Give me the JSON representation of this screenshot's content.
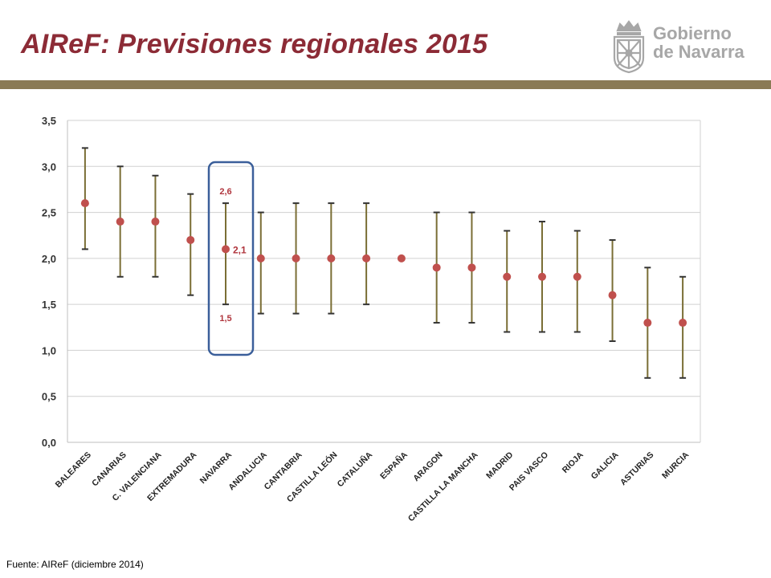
{
  "title": "AIReF: Previsiones regionales 2015",
  "logo": {
    "line1": "Gobierno",
    "line2": "de Navarra"
  },
  "source": "Fuente: AIReF (diciembre 2014)",
  "colors": {
    "title": "#8c2b36",
    "rule": "#8a7a55",
    "point": "#c0504d",
    "whisker": "#7a6e35",
    "highlight": "#3b5f9a",
    "annotation": "#b0353d"
  },
  "chart_data": {
    "type": "scatter",
    "categories": [
      "BALEARES",
      "CANARIAS",
      "C. VALENCIANA",
      "EXTREMADURA",
      "NAVARRA",
      "ANDALUCIA",
      "CANTABRIA",
      "CASTILLA LEÓN",
      "CATALUÑA",
      "ESPAÑA",
      "ARAGON",
      "CASTILLA LA MANCHA",
      "MADRID",
      "PAIS VASCO",
      "RIOJA",
      "GALICIA",
      "ASTURIAS",
      "MURCIA"
    ],
    "series": [
      {
        "values": [
          2.6,
          2.4,
          2.4,
          2.2,
          2.1,
          2.0,
          2.0,
          2.0,
          2.0,
          2.0,
          1.9,
          1.9,
          1.8,
          1.8,
          1.8,
          1.6,
          1.3,
          1.3
        ]
      }
    ],
    "high": [
      3.2,
      3.0,
      2.9,
      2.7,
      2.6,
      2.5,
      2.6,
      2.6,
      2.6,
      null,
      2.5,
      2.5,
      2.3,
      2.4,
      2.3,
      2.2,
      1.9,
      1.8
    ],
    "low": [
      2.1,
      1.8,
      1.8,
      1.6,
      1.5,
      1.4,
      1.4,
      1.4,
      1.5,
      null,
      1.3,
      1.3,
      1.2,
      1.2,
      1.2,
      1.1,
      0.7,
      0.7
    ],
    "ylim": [
      0,
      3.5
    ],
    "yticks": [
      "0,0",
      "0,5",
      "1,0",
      "1,5",
      "2,0",
      "2,5",
      "3,0",
      "3,5"
    ],
    "grid": true,
    "highlight": {
      "category": "NAVARRA",
      "labels": {
        "high": "2,6",
        "value": "2,1",
        "low": "1,5"
      }
    }
  }
}
